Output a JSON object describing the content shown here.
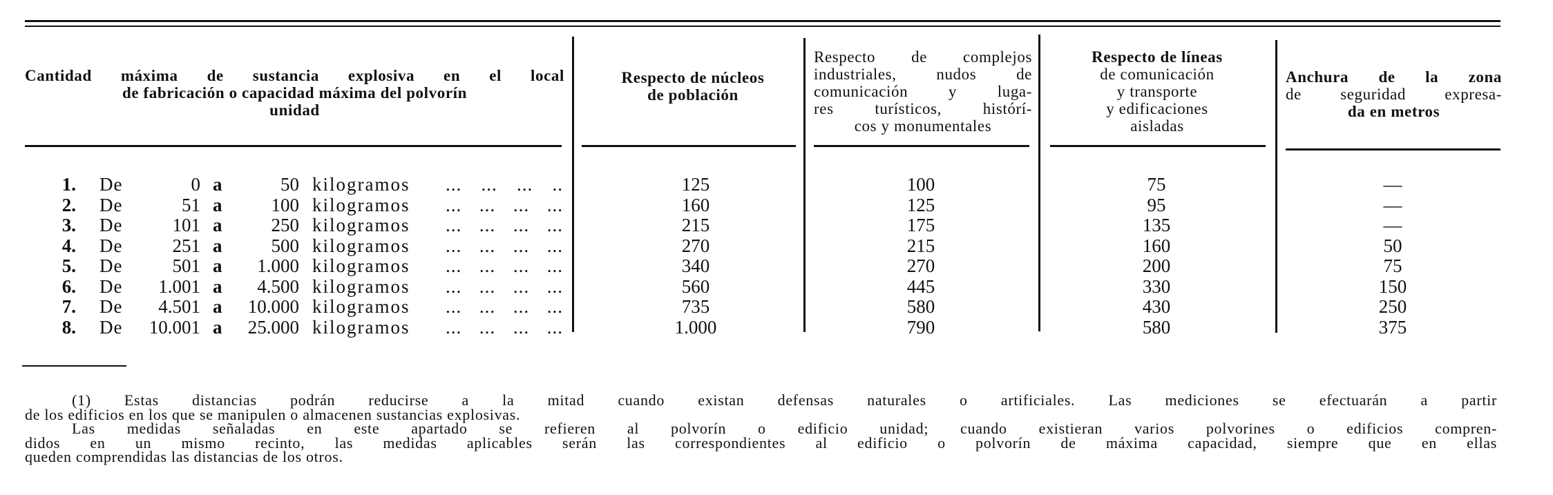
{
  "table": {
    "headers": [
      {
        "lines": [
          "Cantidad máxima de sustancia explosiva en el local",
          "de fabricación o capacidad máxima del polvorín",
          "unidad"
        ]
      },
      {
        "lines": [
          "Respecto de núcleos",
          "de población"
        ]
      },
      {
        "lines": [
          "Respecto de complejos",
          "industriales, nudos de",
          "comunicación y luga-",
          "res turísticos, histórí-",
          "cos y monumentales"
        ]
      },
      {
        "lines": [
          "Respecto de líneas",
          "de comunicación",
          "y transporte",
          "y edificaciones",
          "aisladas"
        ]
      },
      {
        "lines": [
          "Anchura de la zona",
          "de seguridad expresa-",
          "da en metros"
        ]
      }
    ],
    "rows": [
      {
        "num": "1.",
        "de": "De",
        "from": "0",
        "a": "a",
        "to": "50",
        "unit": "kilogramos",
        "dots": "... ... ... ..",
        "values": [
          "125",
          "100",
          "75",
          "—"
        ]
      },
      {
        "num": "2.",
        "de": "De",
        "from": "51",
        "a": "a",
        "to": "100",
        "unit": "kilogramos",
        "dots": "... ... ... ...",
        "values": [
          "160",
          "125",
          "95",
          "—"
        ]
      },
      {
        "num": "3.",
        "de": "De",
        "from": "101",
        "a": "a",
        "to": "250",
        "unit": "kilogramos",
        "dots": "... ... ... ...",
        "values": [
          "215",
          "175",
          "135",
          "—"
        ]
      },
      {
        "num": "4.",
        "de": "De",
        "from": "251",
        "a": "a",
        "to": "500",
        "unit": "kilogramos",
        "dots": "... ... ... ...",
        "values": [
          "270",
          "215",
          "160",
          "50"
        ]
      },
      {
        "num": "5.",
        "de": "De",
        "from": "501",
        "a": "a",
        "to": "1.000",
        "unit": "kilogramos",
        "dots": "... ... ... ...",
        "values": [
          "340",
          "270",
          "200",
          "75"
        ]
      },
      {
        "num": "6.",
        "de": "De",
        "from": "1.001",
        "a": "a",
        "to": "4.500",
        "unit": "kilogramos",
        "dots": "... ... ... ...",
        "values": [
          "560",
          "445",
          "330",
          "150"
        ]
      },
      {
        "num": "7.",
        "de": "De",
        "from": "4.501",
        "a": "a",
        "to": "10.000",
        "unit": "kilogramos",
        "dots": "... ... ... ...",
        "values": [
          "735",
          "580",
          "430",
          "250"
        ]
      },
      {
        "num": "8.",
        "de": "De",
        "from": "10.001",
        "a": "a",
        "to": "25.000",
        "unit": "kilogramos",
        "dots": "... ... ... ...",
        "values": [
          "1.000",
          "790",
          "580",
          "375"
        ]
      }
    ]
  },
  "footnote": {
    "lines": [
      "(1) Estas distancias podrán reducirse a la mitad cuando existan defensas naturales o artificiales. Las mediciones se efectuarán a partir",
      "de los edificios en los que se manipulen o almacenen sustancias explosivas.",
      "Las medidas señaladas en este apartado se refieren al polvorín o edificio unidad; cuando existieran varios polvorines o edificios compren-",
      "didos en un mismo recinto, las medidas aplicables serán las correspondientes al edificio o polvorín de máxima capacidad, siempre que en ellas",
      "queden comprendidas las distancias de los otros."
    ]
  }
}
